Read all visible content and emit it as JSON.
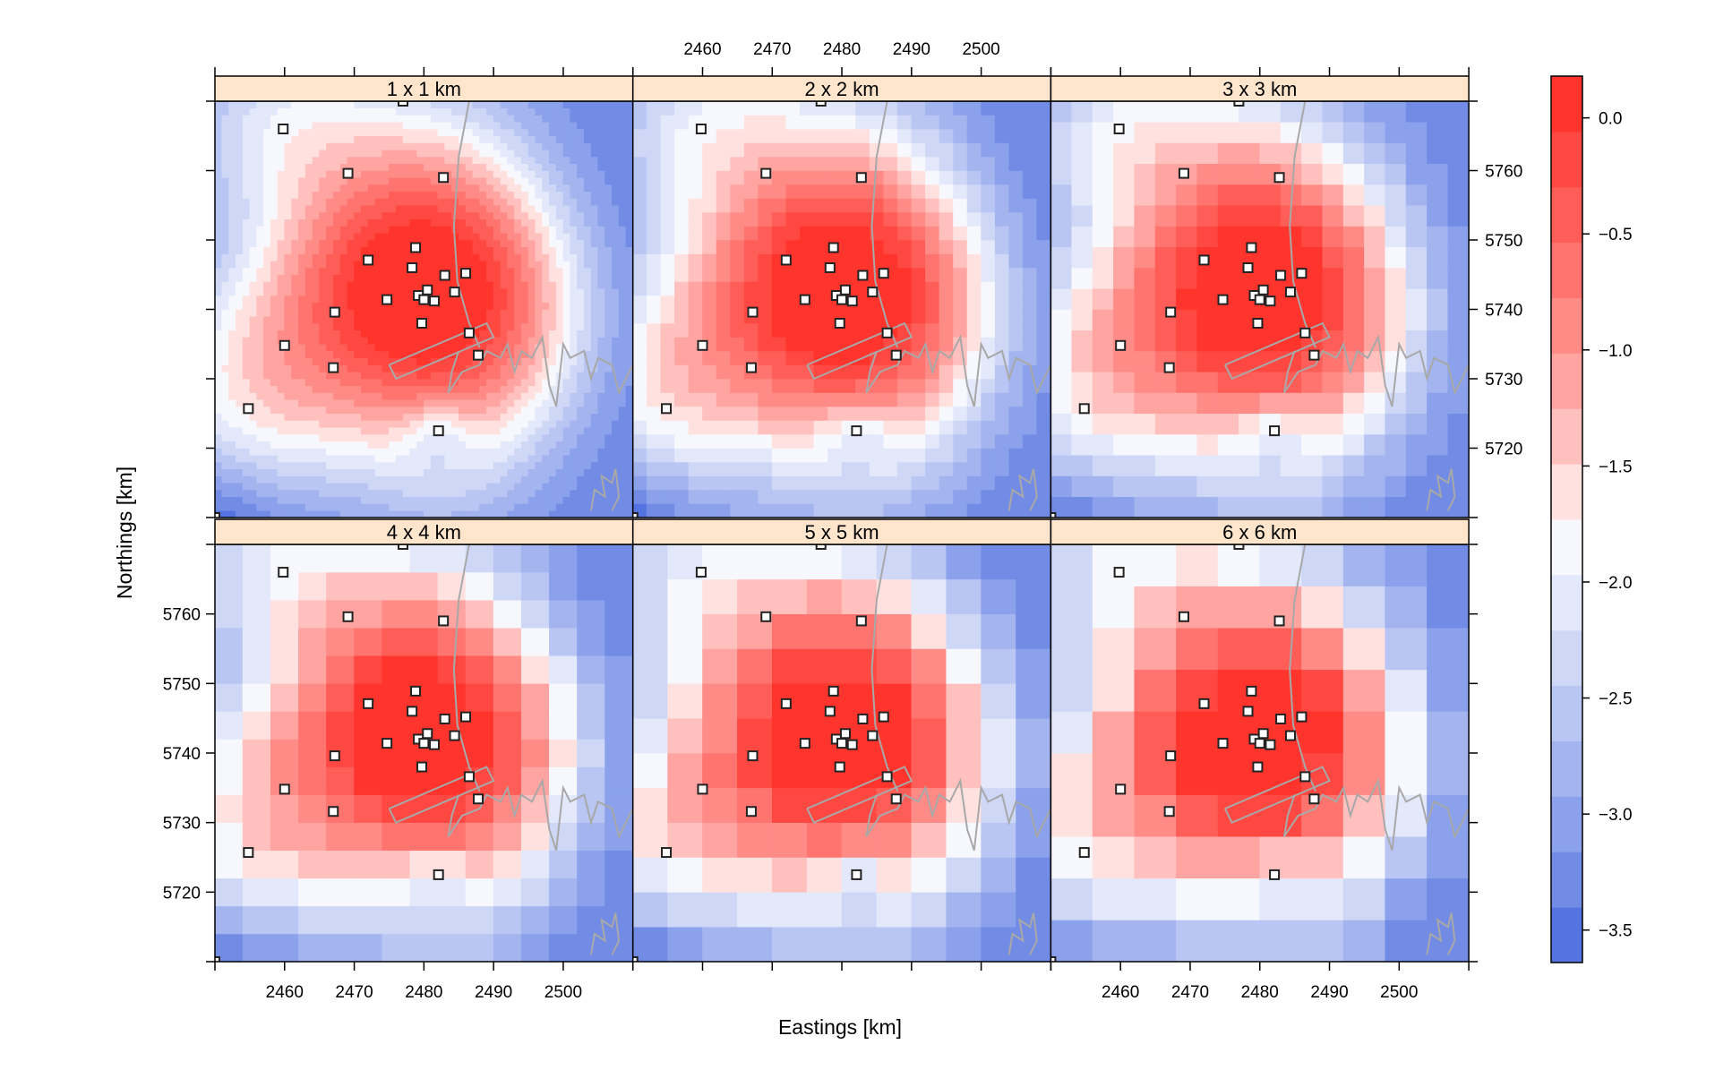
{
  "chart_data": {
    "type": "heatmap",
    "xlabel": "Eastings [km]",
    "ylabel": "Northings [km]",
    "xlim": [
      2450,
      2510
    ],
    "ylim": [
      5710,
      5770
    ],
    "xticks": [
      2460,
      2470,
      2480,
      2490,
      2500
    ],
    "yticks": [
      5720,
      5730,
      5740,
      5750,
      5760
    ],
    "panels": [
      {
        "title": "1 x 1 km",
        "cell_km": 1
      },
      {
        "title": "2 x 2 km",
        "cell_km": 2
      },
      {
        "title": "3 x 3 km",
        "cell_km": 3
      },
      {
        "title": "4 x 4 km",
        "cell_km": 4
      },
      {
        "title": "5 x 5 km",
        "cell_km": 5
      },
      {
        "title": "6 x 6 km",
        "cell_km": 6
      }
    ],
    "colorbar": {
      "range": [
        -3.64,
        0.18
      ],
      "ticks": [
        0.0,
        -0.5,
        -1.0,
        -1.5,
        -2.0,
        -2.5,
        -3.0,
        -3.5
      ],
      "tick_labels": [
        "0.0",
        "−0.5",
        "−1.0",
        "−1.5",
        "−2.0",
        "−2.5",
        "−3.0",
        "−3.5"
      ],
      "low_color": "#3f63dd",
      "mid_color": "#ffffff",
      "high_color": "#ff2a22",
      "levels": 16
    },
    "strip_color": "#ffe5cc",
    "stations": [
      [
        2459.8,
        5766
      ],
      [
        2469.1,
        5759.6
      ],
      [
        2482.8,
        5759
      ],
      [
        2478.8,
        5748.9
      ],
      [
        2472,
        5747.1
      ],
      [
        2478.3,
        5746
      ],
      [
        2483,
        5744.9
      ],
      [
        2486,
        5745.2
      ],
      [
        2480.5,
        5742.8
      ],
      [
        2479.2,
        5742
      ],
      [
        2480,
        5741.4
      ],
      [
        2481.5,
        5741.2
      ],
      [
        2484.4,
        5742.5
      ],
      [
        2474.7,
        5741.4
      ],
      [
        2467.2,
        5739.6
      ],
      [
        2479.7,
        5738
      ],
      [
        2486.5,
        5736.6
      ],
      [
        2460,
        5734.8
      ],
      [
        2487.8,
        5733.4
      ],
      [
        2467,
        5731.6
      ],
      [
        2454.8,
        5725.7
      ],
      [
        2482.1,
        5722.5
      ],
      [
        2477,
        5770
      ],
      [
        2450,
        5710
      ]
    ]
  }
}
